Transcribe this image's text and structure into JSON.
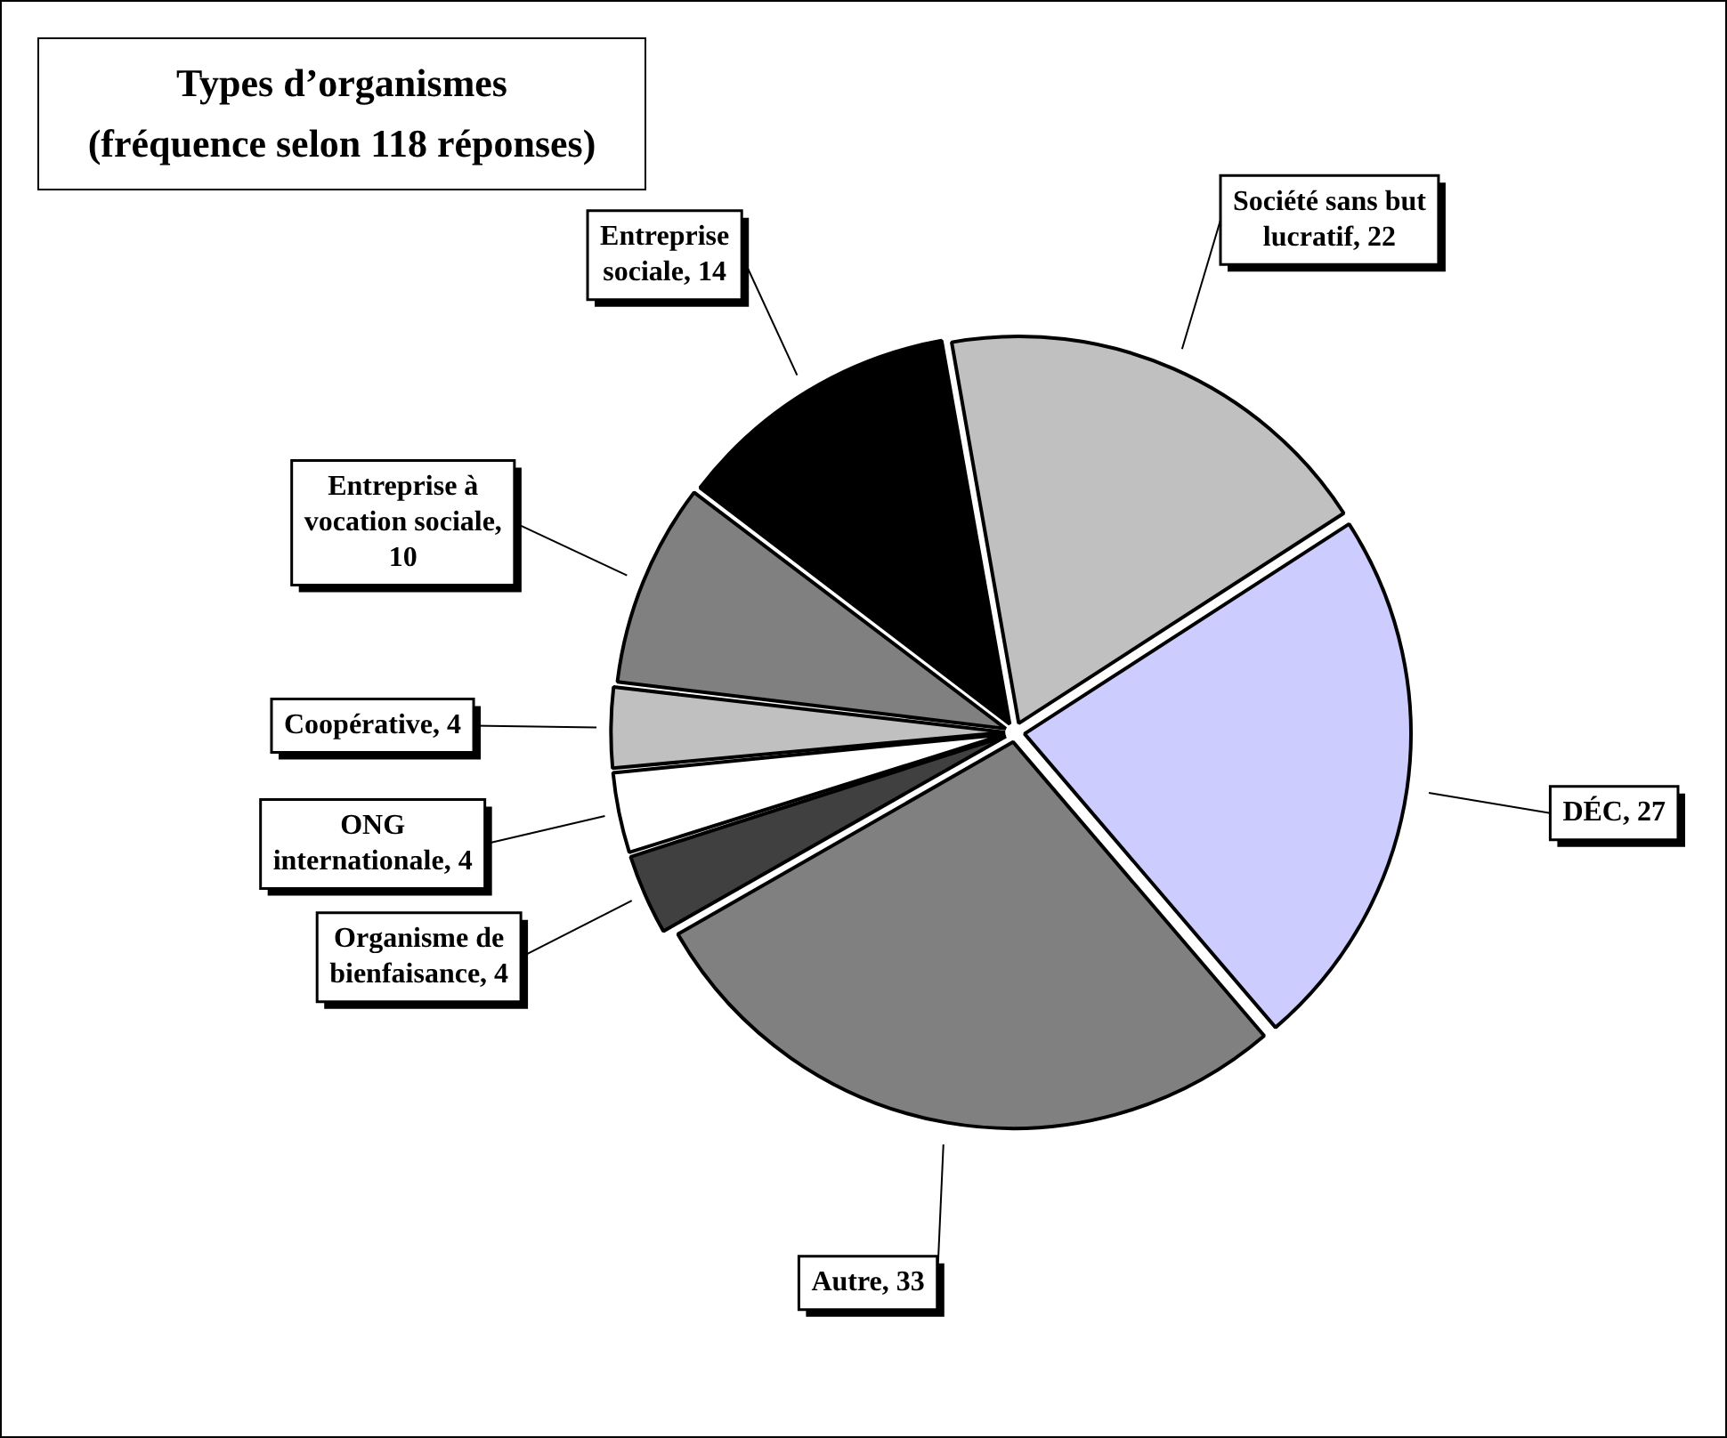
{
  "chart_data": {
    "type": "pie",
    "title": "Types d’organismes\n(fréquence selon 118 réponses)",
    "categories": [
      "Société sans but lucratif, 22",
      "DÉC, 27",
      "Autre, 33",
      "Organisme de bienfaisance, 4",
      "ONG internationale, 4",
      "Coopérative, 4",
      "Entreprise à vocation sociale, 10",
      "Entreprise sociale, 14"
    ],
    "values": [
      22,
      27,
      33,
      4,
      4,
      4,
      10,
      14
    ],
    "colors": [
      "#c0c0c0",
      "#ccccff",
      "#808080",
      "#404040",
      "#ffffff",
      "#c0c0c0",
      "#808080",
      "#000000"
    ],
    "legend": false
  }
}
